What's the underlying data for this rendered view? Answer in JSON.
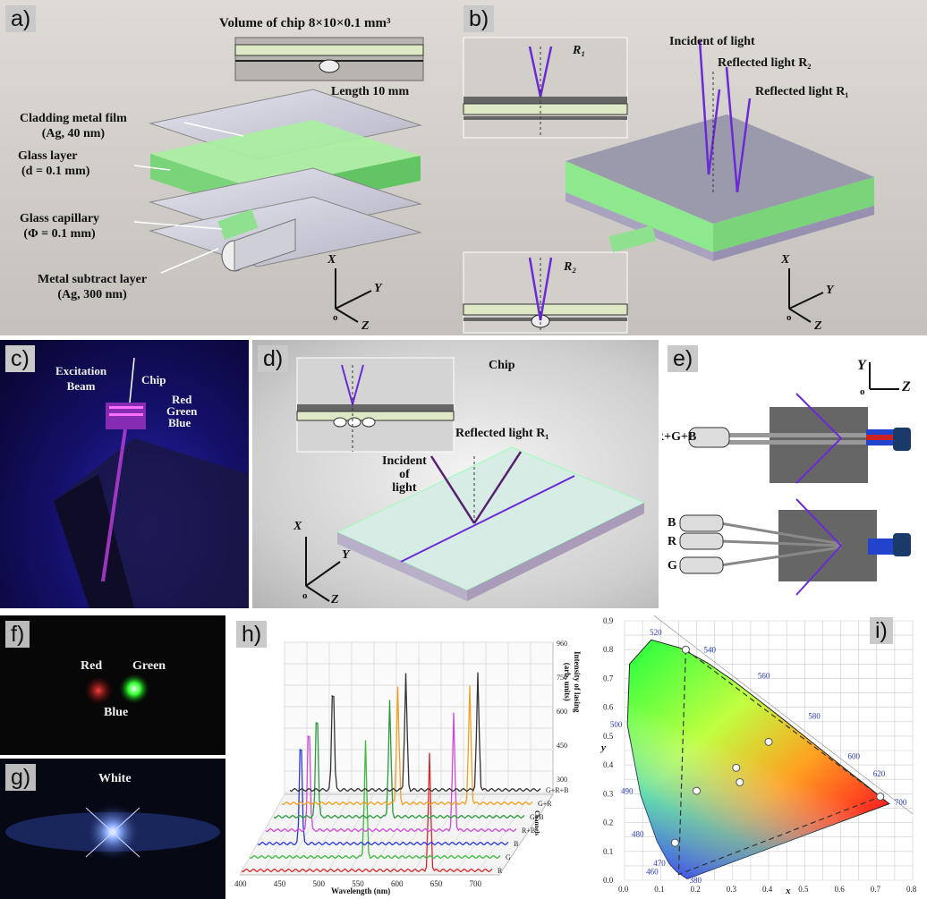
{
  "panels": {
    "a": {
      "tag": "a)",
      "title": "Volume of chip 8×10×0.1 mm³",
      "length": "Length 10 mm",
      "labels": [
        {
          "l1": "Cladding metal film",
          "l2": "(Ag, 40 nm)"
        },
        {
          "l1": "Glass layer",
          "l2": "(d = 0.1 mm)"
        },
        {
          "l1": "Glass capillary",
          "l2": "(Φ = 0.1 mm)"
        },
        {
          "l1": "Metal subtract layer",
          "l2": "(Ag, 300 nm)"
        }
      ],
      "axes": {
        "x": "X",
        "y": "Y",
        "z": "Z",
        "o": "o"
      }
    },
    "b": {
      "tag": "b)",
      "r1": "R₁",
      "r2": "R₂",
      "incident": "Incident of light",
      "reflected2": "Reflected light R₂",
      "reflected1": "Reflected light R₁",
      "axes": {
        "x": "X",
        "y": "Y",
        "z": "Z",
        "o": "o"
      }
    },
    "c": {
      "tag": "c)",
      "excitation": "Excitation",
      "beam": "Beam",
      "chip": "Chip",
      "red": "Red",
      "green": "Green",
      "blue": "Blue"
    },
    "d": {
      "tag": "d)",
      "chip": "Chip",
      "reflected1": "Reflected light R₁",
      "incident1": "Incident",
      "incident2": "of",
      "incident3": "light",
      "axes": {
        "x": "X",
        "y": "Y",
        "z": "Z",
        "o": "o"
      }
    },
    "e": {
      "tag": "e)",
      "top_label": "R+G+B",
      "b": "B",
      "r": "R",
      "g": "G",
      "axes": {
        "y": "Y",
        "z": "Z",
        "o": "o"
      }
    },
    "f": {
      "tag": "f)",
      "red": "Red",
      "green": "Green",
      "blue": "Blue"
    },
    "g": {
      "tag": "g)",
      "white": "White"
    },
    "h": {
      "tag": "h)",
      "xlabel": "Wavelength (nm)",
      "zlabel1": "Intensity of lasing",
      "zlabel2": "(arb. units)",
      "channels_label": "Channels",
      "xticks": [
        "400",
        "450",
        "500",
        "550",
        "600",
        "650",
        "700"
      ],
      "zticks": [
        "960",
        "750",
        "600",
        "450",
        "300"
      ],
      "series": [
        {
          "name": "R",
          "color": "#d62a2a",
          "peaks": [
            640
          ]
        },
        {
          "name": "G",
          "color": "#3dbb3d",
          "peaks": [
            548
          ]
        },
        {
          "name": "B",
          "color": "#2a3ad6",
          "peaks": [
            455
          ]
        },
        {
          "name": "R+B",
          "color": "#d14ad6",
          "peaks": [
            455,
            640
          ]
        },
        {
          "name": "G+B",
          "color": "#2a9a3a",
          "peaks": [
            455,
            548
          ]
        },
        {
          "name": "G+R",
          "color": "#f0a020",
          "peaks": [
            548,
            640
          ]
        },
        {
          "name": "G+R+B",
          "color": "#333333",
          "peaks": [
            455,
            548,
            640
          ]
        }
      ]
    },
    "i": {
      "tag": "i)",
      "xlabel": "x",
      "ylabel": "y",
      "xticks": [
        "0.0",
        "0.1",
        "0.2",
        "0.3",
        "0.4",
        "0.5",
        "0.6",
        "0.7",
        "0.8"
      ],
      "yticks": [
        "0.9",
        "0.8",
        "0.7",
        "0.6",
        "0.5",
        "0.4",
        "0.3",
        "0.2",
        "0.1",
        "0.0"
      ],
      "wavelengths": [
        "520",
        "540",
        "560",
        "580",
        "600",
        "620",
        "700",
        "500",
        "490",
        "480",
        "470",
        "460",
        "380"
      ]
    }
  },
  "chart_data": [
    {
      "type": "line",
      "panel": "h",
      "xlabel": "Wavelength (nm)",
      "zlabel": "Intensity of lasing (arb. units)",
      "xlim": [
        400,
        720
      ],
      "series": [
        {
          "name": "R",
          "peak_nm": [
            640
          ]
        },
        {
          "name": "G",
          "peak_nm": [
            548
          ]
        },
        {
          "name": "B",
          "peak_nm": [
            455
          ]
        },
        {
          "name": "R+B",
          "peak_nm": [
            455,
            640
          ]
        },
        {
          "name": "G+B",
          "peak_nm": [
            455,
            548
          ]
        },
        {
          "name": "G+R",
          "peak_nm": [
            548,
            640
          ]
        },
        {
          "name": "G+R+B",
          "peak_nm": [
            455,
            548,
            640
          ]
        }
      ]
    },
    {
      "type": "scatter",
      "panel": "i",
      "xlabel": "x",
      "ylabel": "y",
      "xlim": [
        0,
        0.8
      ],
      "ylim": [
        0,
        0.9
      ],
      "points": [
        {
          "x": 0.14,
          "y": 0.13
        },
        {
          "x": 0.2,
          "y": 0.31
        },
        {
          "x": 0.31,
          "y": 0.39
        },
        {
          "x": 0.32,
          "y": 0.34
        },
        {
          "x": 0.4,
          "y": 0.48
        },
        {
          "x": 0.71,
          "y": 0.29
        },
        {
          "x": 0.17,
          "y": 0.8
        }
      ],
      "triangle": [
        [
          0.17,
          0.8
        ],
        [
          0.71,
          0.29
        ],
        [
          0.15,
          0.02
        ]
      ]
    }
  ]
}
